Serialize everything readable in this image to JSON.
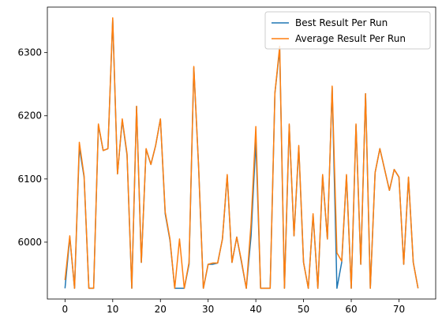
{
  "chart_data": {
    "type": "line",
    "title": "",
    "xlabel": "",
    "ylabel": "",
    "xlim": [
      -3.7,
      77.7
    ],
    "ylim": [
      5910,
      6372
    ],
    "xticks": [
      0,
      10,
      20,
      30,
      40,
      50,
      60,
      70
    ],
    "yticks": [
      6000,
      6100,
      6200,
      6300
    ],
    "grid": false,
    "legend": "top-right",
    "x": [
      0,
      1,
      2,
      3,
      4,
      5,
      6,
      7,
      8,
      9,
      10,
      11,
      12,
      13,
      14,
      15,
      16,
      17,
      18,
      19,
      20,
      21,
      22,
      23,
      24,
      25,
      26,
      27,
      28,
      29,
      30,
      31,
      32,
      33,
      34,
      35,
      36,
      37,
      38,
      39,
      40,
      41,
      42,
      43,
      44,
      45,
      46,
      47,
      48,
      49,
      50,
      51,
      52,
      53,
      54,
      55,
      56,
      57,
      58,
      59,
      60,
      61,
      62,
      63,
      64,
      65,
      66,
      67,
      68,
      69,
      70,
      71,
      72,
      73,
      74
    ],
    "series": [
      {
        "name": "Best Result Per Run",
        "color": "#1f77b4",
        "values": [
          5927,
          6008,
          5927,
          6150,
          6103,
          5927,
          5927,
          6185,
          6145,
          6148,
          6352,
          6108,
          6193,
          6138,
          5927,
          6215,
          5968,
          6147,
          6123,
          6153,
          6195,
          6045,
          6003,
          5927,
          5927,
          5927,
          5965,
          6276,
          6120,
          5927,
          5965,
          5965,
          5967,
          6005,
          6105,
          5968,
          6008,
          5968,
          5927,
          6010,
          6160,
          5927,
          5927,
          5927,
          6236,
          6305,
          5927,
          6185,
          6010,
          6150,
          5968,
          5927,
          6043,
          5927,
          6105,
          6005,
          6245,
          5927,
          5968,
          6105,
          5927,
          6185,
          5965,
          6235,
          5927,
          6110,
          6148,
          6115,
          6082,
          6115,
          6103,
          5965,
          6102,
          5968,
          5927
        ]
      },
      {
        "name": "Average Result Per Run",
        "color": "#ff7f0e",
        "values": [
          5940,
          6010,
          5927,
          6158,
          6105,
          5927,
          5927,
          6187,
          6145,
          6148,
          6355,
          6108,
          6195,
          6140,
          5927,
          6215,
          5968,
          6148,
          6123,
          6153,
          6195,
          6048,
          6005,
          5927,
          6005,
          5927,
          5968,
          6278,
          6120,
          5927,
          5965,
          5967,
          5967,
          6005,
          6107,
          5968,
          6008,
          5970,
          5927,
          6030,
          6183,
          5927,
          5927,
          5927,
          6236,
          6310,
          5927,
          6187,
          6010,
          6153,
          5968,
          5927,
          6045,
          5927,
          6107,
          6005,
          6247,
          5983,
          5970,
          6107,
          5927,
          6187,
          5965,
          6235,
          5927,
          6110,
          6148,
          6115,
          6082,
          6115,
          6103,
          5965,
          6103,
          5968,
          5927
        ]
      }
    ]
  }
}
